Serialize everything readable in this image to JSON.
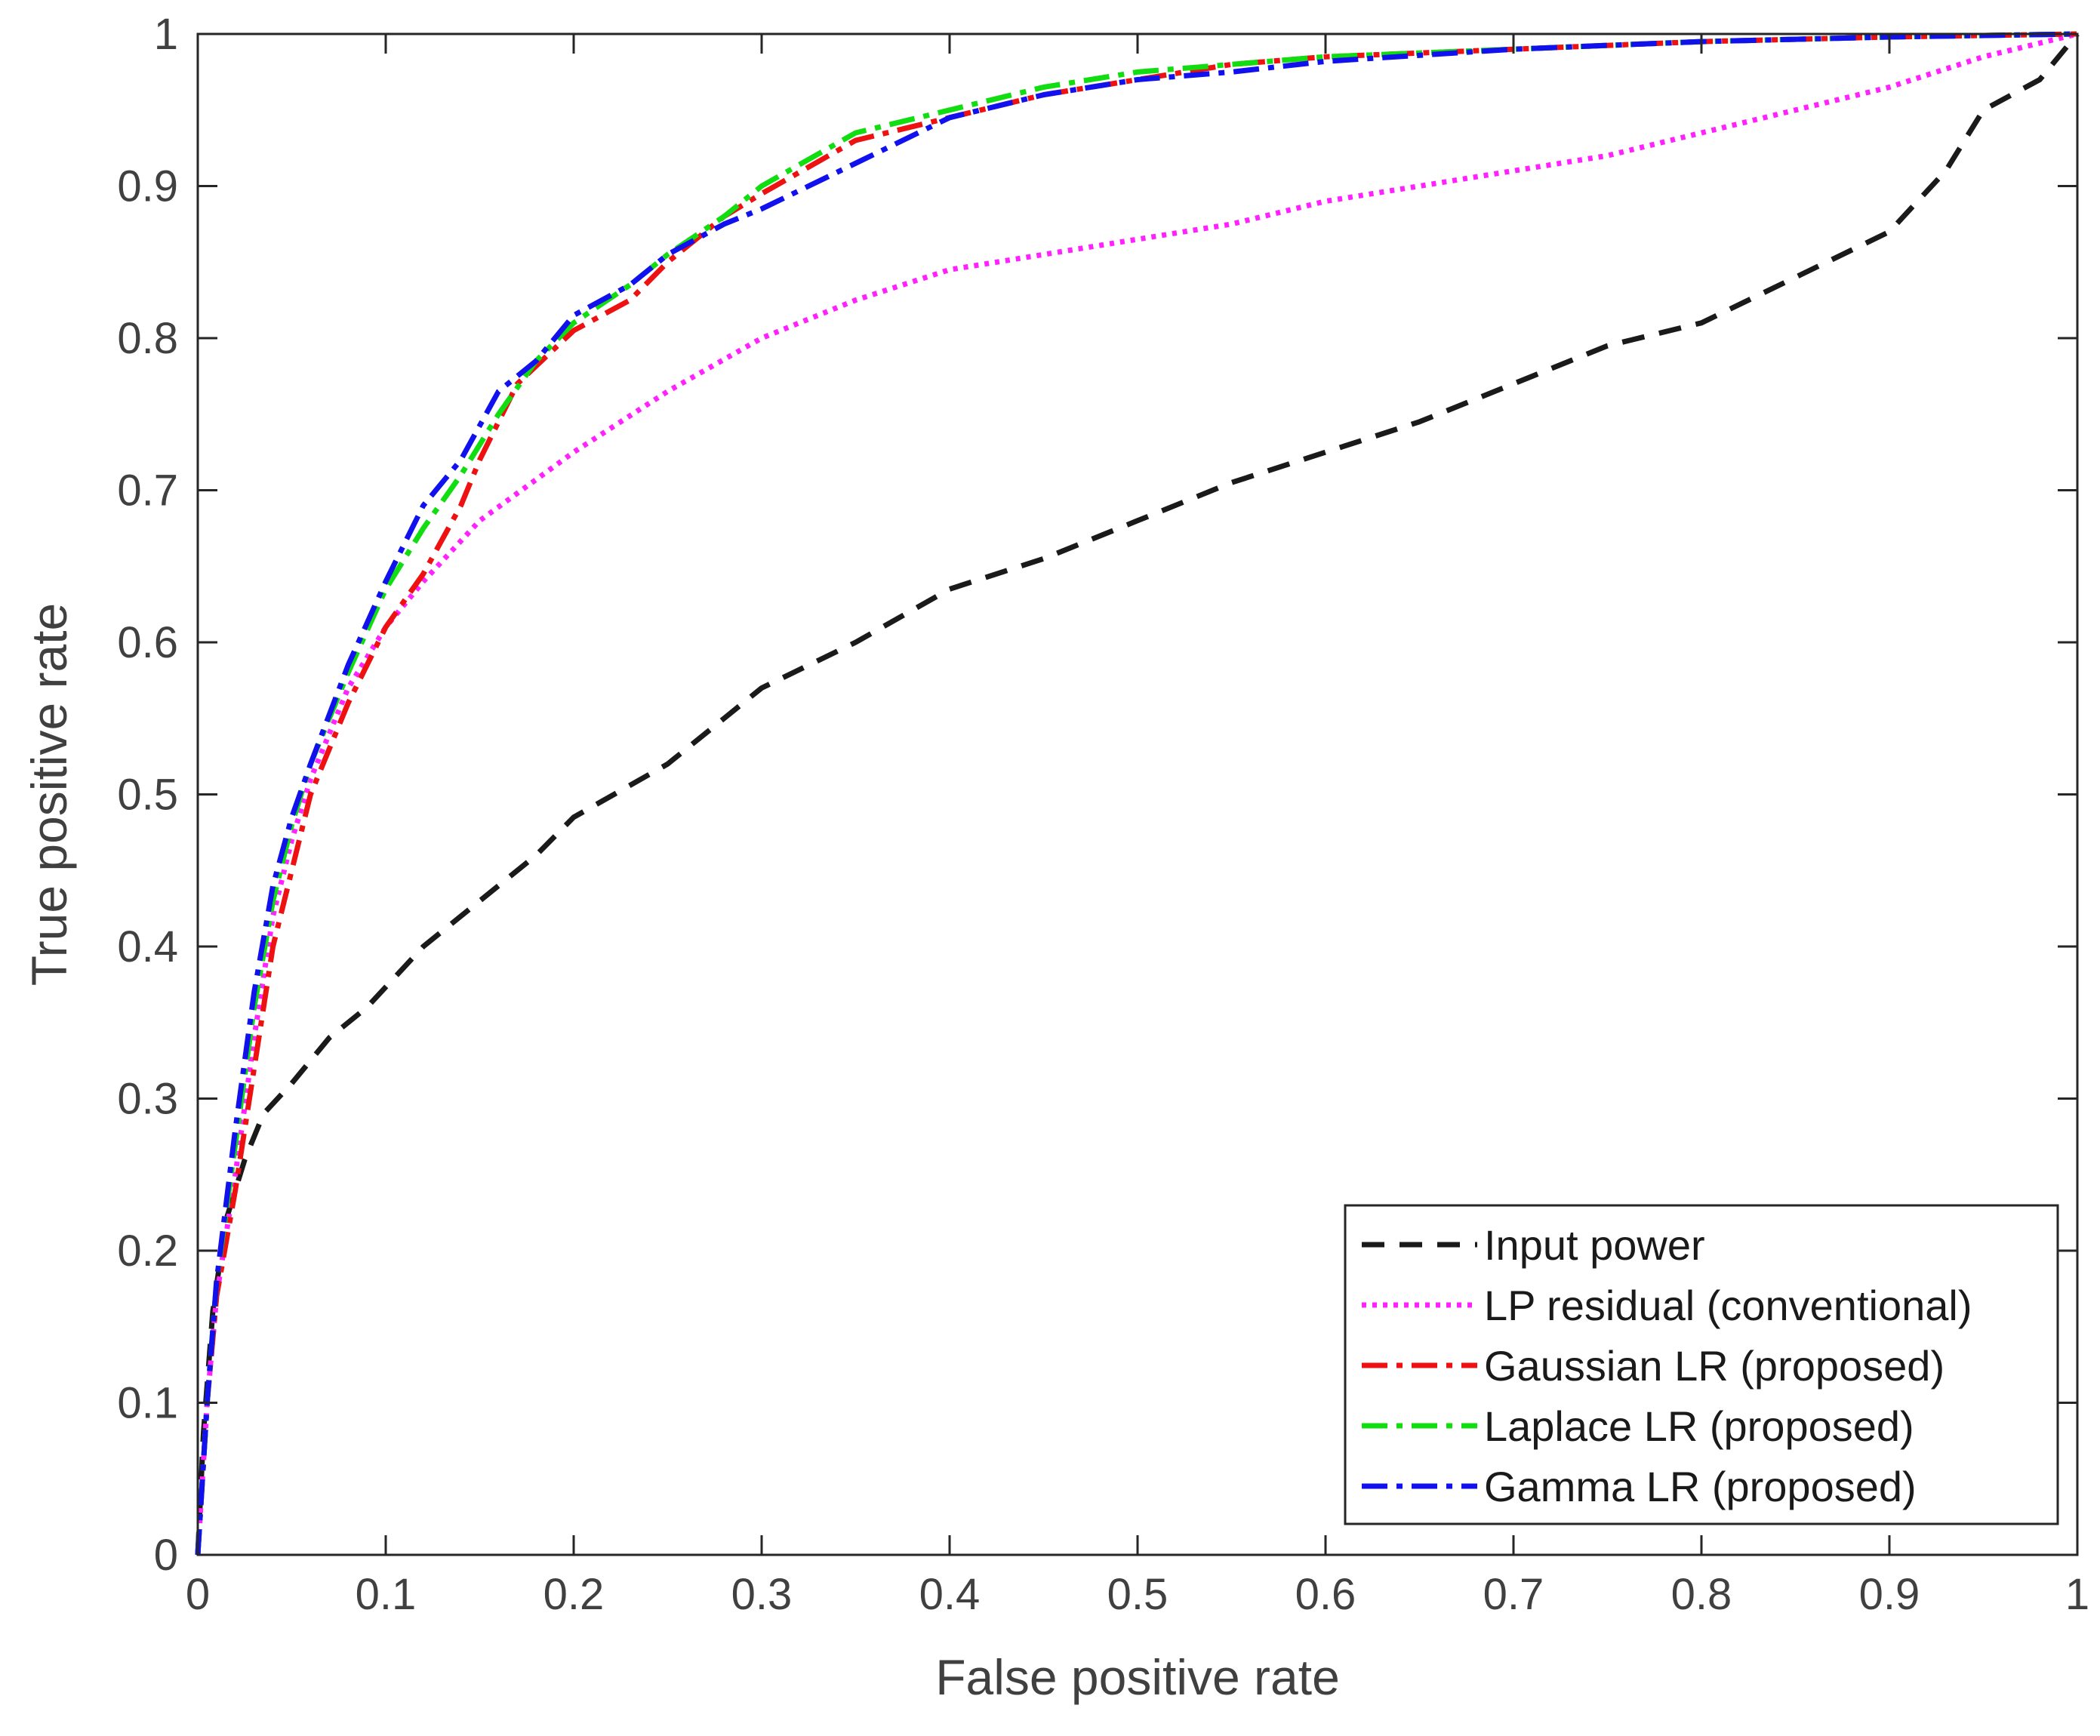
{
  "chart_data": {
    "type": "line",
    "title": "",
    "xlabel": "False positive rate",
    "ylabel": "True positive rate",
    "xlim": [
      0,
      1
    ],
    "ylim": [
      0,
      1
    ],
    "grid": false,
    "legend_position": "bottom-right",
    "xticks": [
      "0",
      "0.1",
      "0.2",
      "0.3",
      "0.4",
      "0.5",
      "0.6",
      "0.7",
      "0.8",
      "0.9",
      "1"
    ],
    "yticks": [
      "0",
      "0.1",
      "0.2",
      "0.3",
      "0.4",
      "0.5",
      "0.6",
      "0.7",
      "0.8",
      "0.9",
      "1"
    ],
    "series": [
      {
        "name": "Input power",
        "color": "#1a1a1a",
        "style": "dashed",
        "points": [
          [
            0,
            0
          ],
          [
            0.003,
            0.08
          ],
          [
            0.008,
            0.16
          ],
          [
            0.015,
            0.22
          ],
          [
            0.025,
            0.26
          ],
          [
            0.035,
            0.29
          ],
          [
            0.05,
            0.31
          ],
          [
            0.07,
            0.34
          ],
          [
            0.09,
            0.36
          ],
          [
            0.12,
            0.4
          ],
          [
            0.15,
            0.43
          ],
          [
            0.18,
            0.46
          ],
          [
            0.2,
            0.485
          ],
          [
            0.25,
            0.52
          ],
          [
            0.28,
            0.55
          ],
          [
            0.3,
            0.57
          ],
          [
            0.35,
            0.6
          ],
          [
            0.4,
            0.635
          ],
          [
            0.45,
            0.655
          ],
          [
            0.5,
            0.68
          ],
          [
            0.55,
            0.705
          ],
          [
            0.6,
            0.725
          ],
          [
            0.65,
            0.745
          ],
          [
            0.7,
            0.77
          ],
          [
            0.75,
            0.795
          ],
          [
            0.8,
            0.81
          ],
          [
            0.85,
            0.84
          ],
          [
            0.9,
            0.87
          ],
          [
            0.93,
            0.91
          ],
          [
            0.95,
            0.95
          ],
          [
            0.98,
            0.97
          ],
          [
            1,
            1
          ]
        ]
      },
      {
        "name": "LP residual (conventional)",
        "color": "#ff22ff",
        "style": "dotted",
        "points": [
          [
            0,
            0
          ],
          [
            0.005,
            0.1
          ],
          [
            0.01,
            0.17
          ],
          [
            0.02,
            0.25
          ],
          [
            0.03,
            0.34
          ],
          [
            0.04,
            0.42
          ],
          [
            0.05,
            0.47
          ],
          [
            0.06,
            0.51
          ],
          [
            0.08,
            0.57
          ],
          [
            0.1,
            0.61
          ],
          [
            0.12,
            0.64
          ],
          [
            0.15,
            0.68
          ],
          [
            0.2,
            0.725
          ],
          [
            0.25,
            0.765
          ],
          [
            0.3,
            0.8
          ],
          [
            0.35,
            0.825
          ],
          [
            0.4,
            0.845
          ],
          [
            0.45,
            0.855
          ],
          [
            0.5,
            0.865
          ],
          [
            0.55,
            0.875
          ],
          [
            0.6,
            0.89
          ],
          [
            0.65,
            0.9
          ],
          [
            0.7,
            0.91
          ],
          [
            0.75,
            0.92
          ],
          [
            0.8,
            0.935
          ],
          [
            0.85,
            0.95
          ],
          [
            0.9,
            0.965
          ],
          [
            0.95,
            0.985
          ],
          [
            1,
            1
          ]
        ]
      },
      {
        "name": "Gaussian LR (proposed)",
        "color": "#ee1111",
        "style": "dashdot",
        "points": [
          [
            0,
            0
          ],
          [
            0.005,
            0.1
          ],
          [
            0.01,
            0.17
          ],
          [
            0.02,
            0.24
          ],
          [
            0.03,
            0.32
          ],
          [
            0.04,
            0.4
          ],
          [
            0.05,
            0.45
          ],
          [
            0.06,
            0.5
          ],
          [
            0.07,
            0.53
          ],
          [
            0.08,
            0.56
          ],
          [
            0.1,
            0.61
          ],
          [
            0.12,
            0.645
          ],
          [
            0.14,
            0.69
          ],
          [
            0.15,
            0.72
          ],
          [
            0.17,
            0.77
          ],
          [
            0.2,
            0.805
          ],
          [
            0.23,
            0.825
          ],
          [
            0.25,
            0.85
          ],
          [
            0.28,
            0.88
          ],
          [
            0.3,
            0.895
          ],
          [
            0.35,
            0.93
          ],
          [
            0.4,
            0.945
          ],
          [
            0.45,
            0.96
          ],
          [
            0.5,
            0.97
          ],
          [
            0.55,
            0.98
          ],
          [
            0.6,
            0.985
          ],
          [
            0.7,
            0.99
          ],
          [
            0.8,
            0.995
          ],
          [
            0.9,
            0.998
          ],
          [
            1,
            1
          ]
        ]
      },
      {
        "name": "Laplace LR (proposed)",
        "color": "#11dd11",
        "style": "dashdot",
        "points": [
          [
            0,
            0
          ],
          [
            0.005,
            0.1
          ],
          [
            0.01,
            0.18
          ],
          [
            0.02,
            0.27
          ],
          [
            0.03,
            0.36
          ],
          [
            0.04,
            0.43
          ],
          [
            0.05,
            0.48
          ],
          [
            0.06,
            0.52
          ],
          [
            0.08,
            0.58
          ],
          [
            0.1,
            0.635
          ],
          [
            0.12,
            0.675
          ],
          [
            0.14,
            0.71
          ],
          [
            0.16,
            0.75
          ],
          [
            0.18,
            0.785
          ],
          [
            0.2,
            0.81
          ],
          [
            0.23,
            0.835
          ],
          [
            0.25,
            0.855
          ],
          [
            0.28,
            0.88
          ],
          [
            0.3,
            0.9
          ],
          [
            0.35,
            0.935
          ],
          [
            0.4,
            0.95
          ],
          [
            0.45,
            0.965
          ],
          [
            0.5,
            0.975
          ],
          [
            0.55,
            0.98
          ],
          [
            0.6,
            0.985
          ],
          [
            0.7,
            0.99
          ],
          [
            0.8,
            0.995
          ],
          [
            0.9,
            0.998
          ],
          [
            1,
            1
          ]
        ]
      },
      {
        "name": "Gamma LR (proposed)",
        "color": "#1111ee",
        "style": "dashdot",
        "points": [
          [
            0,
            0
          ],
          [
            0.005,
            0.1
          ],
          [
            0.01,
            0.18
          ],
          [
            0.02,
            0.28
          ],
          [
            0.03,
            0.37
          ],
          [
            0.04,
            0.44
          ],
          [
            0.05,
            0.485
          ],
          [
            0.06,
            0.52
          ],
          [
            0.08,
            0.585
          ],
          [
            0.1,
            0.64
          ],
          [
            0.12,
            0.69
          ],
          [
            0.14,
            0.72
          ],
          [
            0.16,
            0.765
          ],
          [
            0.18,
            0.785
          ],
          [
            0.2,
            0.815
          ],
          [
            0.23,
            0.835
          ],
          [
            0.25,
            0.855
          ],
          [
            0.28,
            0.875
          ],
          [
            0.3,
            0.885
          ],
          [
            0.35,
            0.915
          ],
          [
            0.4,
            0.945
          ],
          [
            0.45,
            0.96
          ],
          [
            0.5,
            0.97
          ],
          [
            0.55,
            0.975
          ],
          [
            0.6,
            0.982
          ],
          [
            0.7,
            0.99
          ],
          [
            0.8,
            0.995
          ],
          [
            0.9,
            0.998
          ],
          [
            1,
            1
          ]
        ]
      }
    ]
  }
}
